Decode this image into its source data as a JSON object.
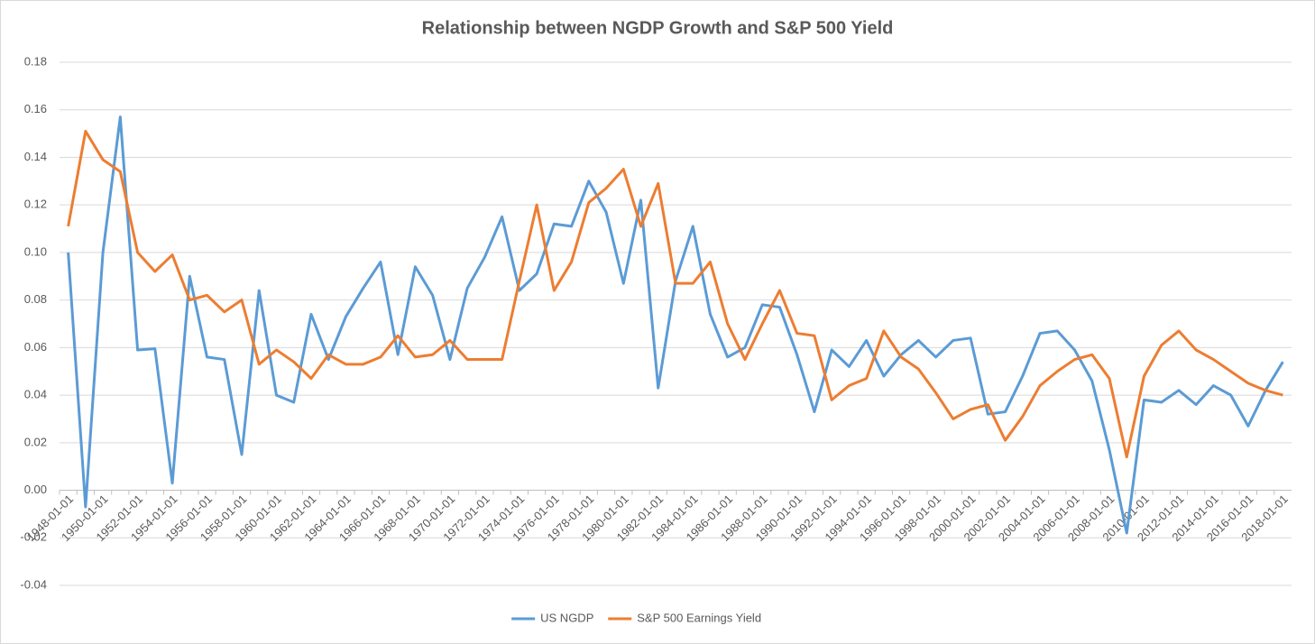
{
  "chart_data": {
    "type": "line",
    "title": "Relationship between NGDP Growth and S&P 500 Yield",
    "categories": [
      "1948-01-01",
      null,
      "1950-01-01",
      null,
      "1952-01-01",
      null,
      "1954-01-01",
      null,
      "1956-01-01",
      null,
      "1958-01-01",
      null,
      "1960-01-01",
      null,
      "1962-01-01",
      null,
      "1964-01-01",
      null,
      "1966-01-01",
      null,
      "1968-01-01",
      null,
      "1970-01-01",
      null,
      "1972-01-01",
      null,
      "1974-01-01",
      null,
      "1976-01-01",
      null,
      "1978-01-01",
      null,
      "1980-01-01",
      null,
      "1982-01-01",
      null,
      "1984-01-01",
      null,
      "1986-01-01",
      null,
      "1988-01-01",
      null,
      "1990-01-01",
      null,
      "1992-01-01",
      null,
      "1994-01-01",
      null,
      "1996-01-01",
      null,
      "1998-01-01",
      null,
      "2000-01-01",
      null,
      "2002-01-01",
      null,
      "2004-01-01",
      null,
      "2006-01-01",
      null,
      "2008-01-01",
      null,
      "2010-01-01",
      null,
      "2012-01-01",
      null,
      "2014-01-01",
      null,
      "2016-01-01",
      null,
      "2018-01-01"
    ],
    "series": [
      {
        "name": "US NGDP",
        "color": "#5b9bd5",
        "values": [
          0.1,
          -0.007,
          0.1,
          0.157,
          0.059,
          0.0595,
          0.003,
          0.09,
          0.056,
          0.055,
          0.015,
          0.084,
          0.04,
          0.037,
          0.074,
          0.055,
          0.073,
          0.085,
          0.096,
          0.057,
          0.094,
          0.082,
          0.055,
          0.085,
          0.098,
          0.115,
          0.084,
          0.091,
          0.112,
          0.111,
          0.13,
          0.117,
          0.087,
          0.122,
          0.043,
          0.088,
          0.111,
          0.074,
          0.056,
          0.06,
          0.078,
          0.077,
          0.057,
          0.033,
          0.059,
          0.052,
          0.063,
          0.048,
          0.057,
          0.063,
          0.056,
          0.063,
          0.064,
          0.032,
          0.033,
          0.048,
          0.066,
          0.067,
          0.059,
          0.046,
          0.017,
          -0.018,
          0.038,
          0.037,
          0.042,
          0.036,
          0.044,
          0.04,
          0.027,
          0.042,
          0.054
        ]
      },
      {
        "name": "S&P 500 Earnings Yield",
        "color": "#ed7d31",
        "values": [
          0.111,
          0.151,
          0.139,
          0.134,
          0.1,
          0.092,
          0.099,
          0.08,
          0.082,
          0.075,
          0.08,
          0.053,
          0.059,
          0.054,
          0.047,
          0.057,
          0.053,
          0.053,
          0.056,
          0.065,
          0.056,
          0.057,
          0.063,
          0.055,
          0.055,
          0.055,
          0.088,
          0.12,
          0.084,
          0.096,
          0.121,
          0.127,
          0.135,
          0.111,
          0.129,
          0.087,
          0.087,
          0.096,
          0.07,
          0.055,
          0.07,
          0.084,
          0.066,
          0.065,
          0.038,
          0.044,
          0.047,
          0.067,
          0.056,
          0.051,
          0.041,
          0.03,
          0.034,
          0.036,
          0.021,
          0.031,
          0.044,
          0.05,
          0.055,
          0.057,
          0.047,
          0.014,
          0.048,
          0.061,
          0.067,
          0.059,
          0.055,
          0.05,
          0.045,
          0.042,
          0.04
        ]
      }
    ],
    "ylim": [
      -0.04,
      0.18
    ],
    "yticks": [
      {
        "value": -0.04,
        "label": "-0.04"
      },
      {
        "value": -0.02,
        "label": "-0.02"
      },
      {
        "value": 0,
        "label": "0.00"
      },
      {
        "value": 0.02,
        "label": "0.02"
      },
      {
        "value": 0.04,
        "label": "0.04"
      },
      {
        "value": 0.06,
        "label": "0.06"
      },
      {
        "value": 0.08,
        "label": "0.08"
      },
      {
        "value": 0.1,
        "label": "0.10"
      },
      {
        "value": 0.12,
        "label": "0.12"
      },
      {
        "value": 0.14,
        "label": "0.14"
      },
      {
        "value": 0.16,
        "label": "0.16"
      },
      {
        "value": 0.18,
        "label": "0.18"
      }
    ],
    "grid": true,
    "legend": "bottom"
  }
}
